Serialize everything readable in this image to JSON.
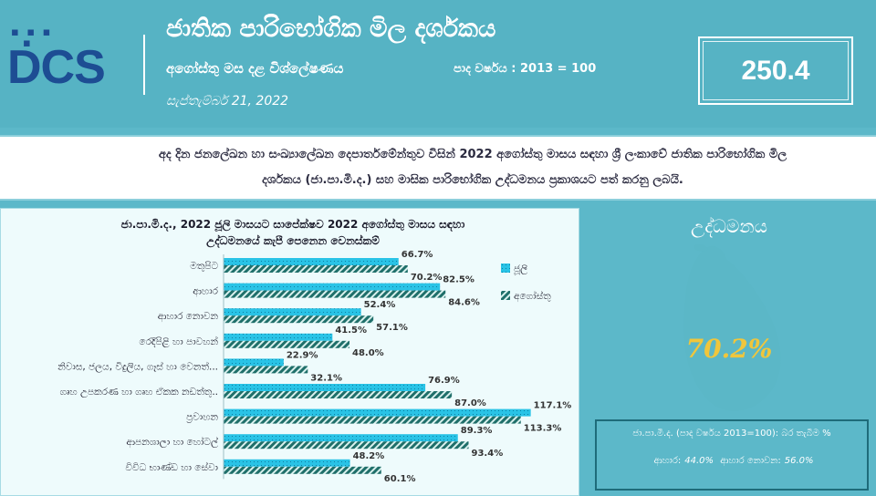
{
  "header": {
    "logo_text": "DCS",
    "title": "ජාතික පාරිභෝගික මිල දර්ශකය",
    "subtitle": "අගෝස්තු මස දළ විශ්ලේෂණය",
    "base_year": "පාද වර්ෂය : 2013 = 100",
    "date": "සැප්තැම්බර් 21, 2022",
    "index_value": "250.4"
  },
  "announcement": {
    "line1": "අද දින ජනලේඛන හා සංඛ්‍යාලේඛන දෙපාර්තමේන්තුව විසින් 2022 අගෝස්තු මාසය සඳහා ශ්‍රී ලංකාවේ ජාතික පාරිභෝගික මිල",
    "line2": "දර්ශකය (ජා.පා.මි.ද.) සහ මාසික පාරිභෝගික උද්ධමනය ප්‍රකාශයට පත් කරනු ලබයි."
  },
  "chart_data": {
    "type": "bar",
    "orientation": "horizontal",
    "title_line1": "ජා.පා.මි.ද., 2022 ජූලි මාසයට සාපේක්ෂව 2022 අගෝස්තු මාසය සඳහා",
    "title_line2": "උද්ධමනයේ කැපී පෙනෙන වෙනස්කම්",
    "categories": [
      "මතුපිට",
      "ආහාර",
      "ආහාර නොවන",
      "රෙදිපිළි හා පාවහන්",
      "නිවාස, ජලය, විදුලිය, ගෑස් හා වෙනත්...",
      "ගෘහ උපකරණ හා ගෘහ ඒකක නඩත්තු..",
      "ප්‍රවාහන",
      "ආපනශාලා හා හෝටල්",
      "විවිධ භාණ්ඩ හා සේවා"
    ],
    "series": [
      {
        "name": "ජූලි",
        "color": "#29c3e6",
        "values": [
          66.7,
          82.5,
          52.4,
          41.5,
          22.9,
          76.9,
          117.1,
          89.3,
          48.2
        ]
      },
      {
        "name": "අගෝස්තු",
        "color": "#1f6f6a",
        "values": [
          70.2,
          84.6,
          57.1,
          48.0,
          32.1,
          87.0,
          113.3,
          93.4,
          60.1
        ]
      }
    ],
    "value_suffix": "%",
    "xlim": [
      0,
      120
    ],
    "grid": false,
    "legend_position": "right"
  },
  "map": {
    "title": "උද්ධමනය",
    "value": "70.2%",
    "info_line1": "ජා.පා.මි.ද. (පාද වර්ෂය 2013=100): බර තැබීම %",
    "food_label": "ආහාර:",
    "food_value": "44.0%",
    "nonfood_label": "ආහාර නොවන:",
    "nonfood_value": "56.0%",
    "land_color": "#5bb7c7",
    "value_color": "#f0c63c"
  }
}
